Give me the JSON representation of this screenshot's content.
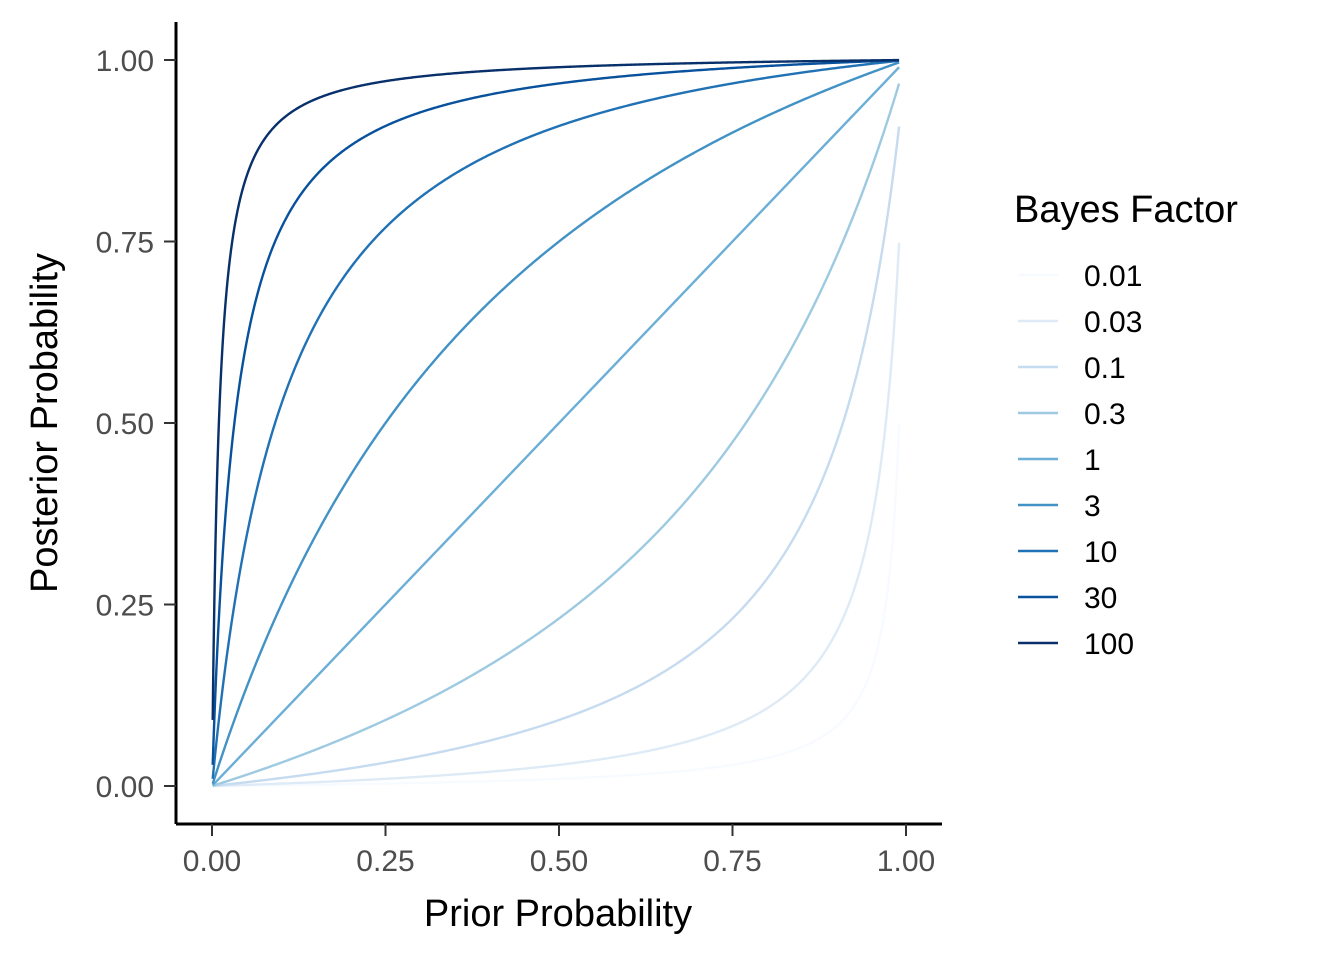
{
  "chart_data": {
    "type": "line",
    "xlabel": "Prior Probability",
    "ylabel": "Posterior Probability",
    "xlim": [
      0,
      1
    ],
    "ylim": [
      0,
      1
    ],
    "x_ticks": [
      "0.00",
      "0.25",
      "0.50",
      "0.75",
      "1.00"
    ],
    "y_ticks": [
      "0.00",
      "0.25",
      "0.50",
      "0.75",
      "1.00"
    ],
    "x_range": [
      0.001,
      0.99
    ],
    "grid": false,
    "legend": {
      "title": "Bayes Factor",
      "position": "right"
    },
    "series": [
      {
        "name": "0.01",
        "bayes_factor": 0.01,
        "color": "#f7fbff"
      },
      {
        "name": "0.03",
        "bayes_factor": 0.03,
        "color": "#deebf7"
      },
      {
        "name": "0.1",
        "bayes_factor": 0.1,
        "color": "#c6dbef"
      },
      {
        "name": "0.3",
        "bayes_factor": 0.3,
        "color": "#9ecae1"
      },
      {
        "name": "1",
        "bayes_factor": 1,
        "color": "#6baed6"
      },
      {
        "name": "3",
        "bayes_factor": 3,
        "color": "#4292c6"
      },
      {
        "name": "10",
        "bayes_factor": 10,
        "color": "#2171b5"
      },
      {
        "name": "30",
        "bayes_factor": 30,
        "color": "#08519c"
      },
      {
        "name": "100",
        "bayes_factor": 100,
        "color": "#08306b"
      }
    ]
  }
}
